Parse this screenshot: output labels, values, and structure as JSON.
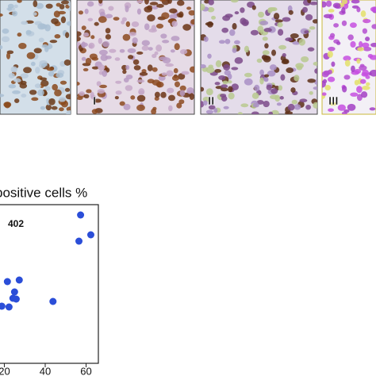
{
  "chart_data": {
    "type": "scatter",
    "title": "positive cells %",
    "annotation": "402",
    "panel_labels": [
      "I",
      "II",
      "III"
    ],
    "x": [
      57.3,
      56.5,
      62.3,
      21.5,
      27.3,
      25,
      24.2,
      25.8,
      43.8,
      18.8,
      22.3
    ],
    "values": [
      93.5,
      77,
      81,
      51.5,
      52.5,
      45,
      41,
      40.5,
      39,
      36,
      35.5
    ],
    "color": "#2b4ed8",
    "xlim": [
      14,
      66
    ],
    "xticks": [
      20,
      40,
      60
    ],
    "ylim": [
      0,
      100
    ]
  }
}
